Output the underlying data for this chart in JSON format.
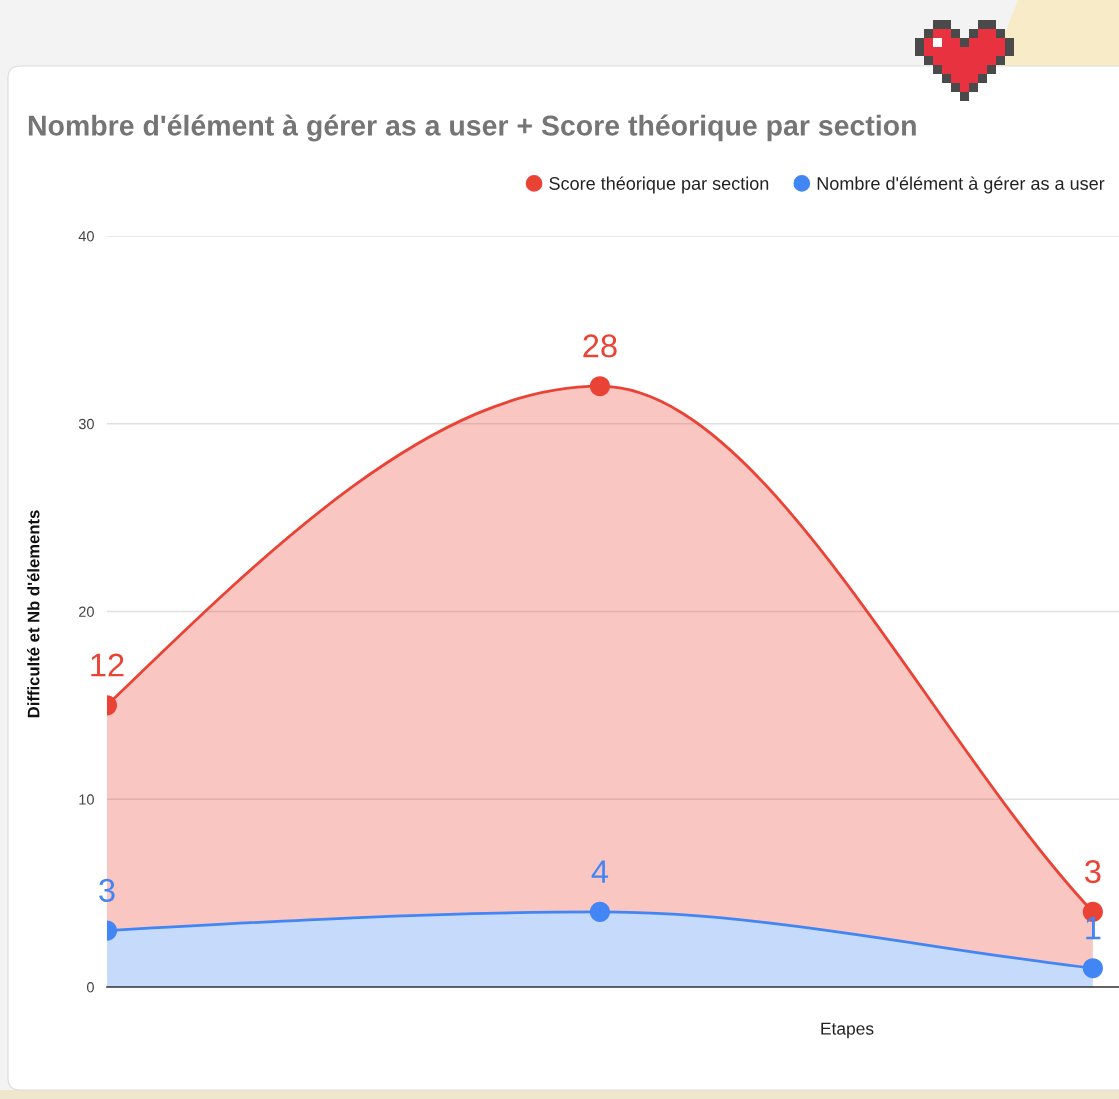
{
  "chart_data": {
    "type": "area",
    "title": "Nombre d'élément à gérer as a user + Score théorique par section",
    "xlabel": "Etapes",
    "ylabel": "Difficulté et Nb d'élements",
    "categories": [
      null,
      null,
      null
    ],
    "stacked": true,
    "series": [
      {
        "name": "Nombre d'élément à gérer as a user",
        "color": "#4285f4",
        "values": [
          3,
          4,
          1
        ]
      },
      {
        "name": "Score théorique par section",
        "color": "#ea4335",
        "values": [
          12,
          28,
          3
        ]
      }
    ],
    "ylim": [
      0,
      40
    ],
    "yticks": [
      0,
      10,
      20,
      30,
      40
    ],
    "grid": "y",
    "legend": "top right",
    "marker": "circle",
    "data_labels": true,
    "tick_labels": "y"
  }
}
